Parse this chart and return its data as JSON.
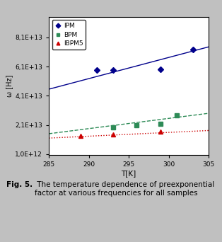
{
  "title": "",
  "xlabel": "T[K]",
  "ylabel": "ω [Hz]",
  "xlim": [
    285,
    305
  ],
  "yticks": [
    1000000000000.0,
    21000000000000.0,
    41000000000000.0,
    61000000000000.0,
    81000000000000.0
  ],
  "ytick_labels": [
    "1,0E+12",
    "2,1E+13",
    "4,1E+13",
    "6,1E+13",
    "8,1E+13"
  ],
  "xticks": [
    285,
    290,
    295,
    300,
    305
  ],
  "series": [
    {
      "label": "IPM",
      "color": "#00008B",
      "marker": "D",
      "linestyle": "-",
      "x": [
        291,
        293,
        299,
        303
      ],
      "y": [
        58500000000000.0,
        58500000000000.0,
        59000000000000.0,
        72500000000000.0
      ],
      "trendline_x": [
        285,
        305
      ],
      "trendline_y": [
        45500000000000.0,
        74500000000000.0
      ]
    },
    {
      "label": "BPM",
      "color": "#2E8B57",
      "marker": "s",
      "linestyle": "--",
      "x": [
        293,
        296,
        299,
        301
      ],
      "y": [
        19500000000000.0,
        21000000000000.0,
        22000000000000.0,
        27500000000000.0
      ],
      "trendline_x": [
        285,
        305
      ],
      "trendline_y": [
        15000000000000.0,
        29000000000000.0
      ]
    },
    {
      "label": "IBPM5",
      "color": "#CC0000",
      "marker": "^",
      "linestyle": ":",
      "x": [
        289,
        293,
        299
      ],
      "y": [
        13500000000000.0,
        14500000000000.0,
        16500000000000.0
      ],
      "trendline_x": [
        285,
        305
      ],
      "trendline_y": [
        12000000000000.0,
        17200000000000.0
      ]
    }
  ],
  "legend_loc": "upper left",
  "background_color": "#c0c0c0",
  "plot_bg_color": "#ffffff",
  "caption_bold": "Fig. 5.",
  "caption_normal": " The temperature dependence of preexponential\nfactor at various frequencies for all samples",
  "ymin": 500000000000.0,
  "ymax": 95000000000000.0
}
